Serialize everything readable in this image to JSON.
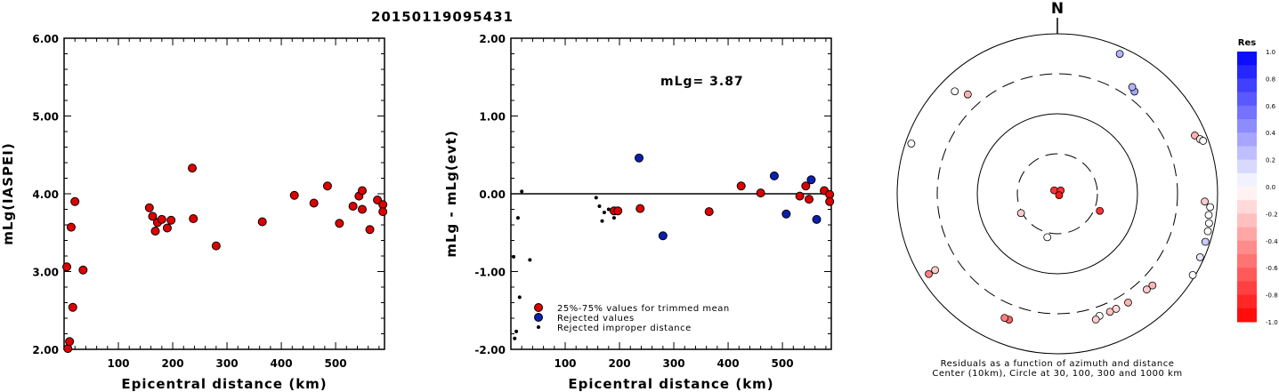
{
  "title": "20150119095431",
  "colors": {
    "trimmed": "#dd0000",
    "rejected": "#0a1fb0",
    "improper": "#000000"
  },
  "chart_data": [
    {
      "type": "scatter",
      "xlabel": "Epicentral distance (km)",
      "ylabel": "mLg(IASPEI)",
      "xlim": [
        0,
        590
      ],
      "ylim": [
        2.0,
        6.0
      ],
      "xticks": [
        "100",
        "200",
        "300",
        "400",
        "500"
      ],
      "yticks": [
        "2.00",
        "3.00",
        "4.00",
        "5.00",
        "6.00"
      ],
      "points": [
        {
          "x": 5,
          "y": 3.06
        },
        {
          "x": 7,
          "y": 2.01
        },
        {
          "x": 10,
          "y": 2.1
        },
        {
          "x": 13,
          "y": 3.57
        },
        {
          "x": 16,
          "y": 2.54
        },
        {
          "x": 20,
          "y": 3.9
        },
        {
          "x": 35,
          "y": 3.02
        },
        {
          "x": 157,
          "y": 3.82
        },
        {
          "x": 163,
          "y": 3.71
        },
        {
          "x": 168,
          "y": 3.52
        },
        {
          "x": 172,
          "y": 3.63
        },
        {
          "x": 180,
          "y": 3.67
        },
        {
          "x": 190,
          "y": 3.56
        },
        {
          "x": 197,
          "y": 3.66
        },
        {
          "x": 236,
          "y": 4.33
        },
        {
          "x": 238,
          "y": 3.68
        },
        {
          "x": 280,
          "y": 3.33
        },
        {
          "x": 365,
          "y": 3.64
        },
        {
          "x": 424,
          "y": 3.98
        },
        {
          "x": 460,
          "y": 3.88
        },
        {
          "x": 485,
          "y": 4.1
        },
        {
          "x": 507,
          "y": 3.62
        },
        {
          "x": 532,
          "y": 3.84
        },
        {
          "x": 543,
          "y": 3.97
        },
        {
          "x": 549,
          "y": 4.04
        },
        {
          "x": 549,
          "y": 3.8
        },
        {
          "x": 563,
          "y": 3.54
        },
        {
          "x": 577,
          "y": 3.92
        },
        {
          "x": 587,
          "y": 3.86
        },
        {
          "x": 587,
          "y": 3.77
        }
      ]
    },
    {
      "type": "scatter",
      "xlabel": "Epicentral distance (km)",
      "ylabel": "mLg - mLg(evt)",
      "annotation": "mLg= 3.87",
      "xlim": [
        0,
        590
      ],
      "ylim": [
        -2.0,
        2.0
      ],
      "xticks": [
        "100",
        "200",
        "300",
        "400",
        "500"
      ],
      "yticks": [
        "-2.00",
        "-1.00",
        "0.00",
        "1.00",
        "2.00"
      ],
      "legend": [
        "25%-75% values for trimmed mean",
        "Rejected values",
        "Rejected improper distance"
      ],
      "series": [
        {
          "name": "25%-75% values for trimmed mean",
          "points": [
            {
              "x": 190,
              "y": -0.22
            },
            {
              "x": 197,
              "y": -0.22
            },
            {
              "x": 238,
              "y": -0.19
            },
            {
              "x": 365,
              "y": -0.23
            },
            {
              "x": 424,
              "y": 0.1
            },
            {
              "x": 460,
              "y": 0.01
            },
            {
              "x": 532,
              "y": -0.03
            },
            {
              "x": 543,
              "y": 0.1
            },
            {
              "x": 549,
              "y": -0.07
            },
            {
              "x": 577,
              "y": 0.04
            },
            {
              "x": 587,
              "y": -0.01
            },
            {
              "x": 587,
              "y": -0.1
            }
          ]
        },
        {
          "name": "Rejected values",
          "points": [
            {
              "x": 236,
              "y": 0.46
            },
            {
              "x": 280,
              "y": -0.54
            },
            {
              "x": 485,
              "y": 0.23
            },
            {
              "x": 507,
              "y": -0.26
            },
            {
              "x": 553,
              "y": 0.18
            },
            {
              "x": 563,
              "y": -0.33
            }
          ]
        },
        {
          "name": "Rejected improper distance",
          "points": [
            {
              "x": 5,
              "y": -0.81
            },
            {
              "x": 7,
              "y": -1.86
            },
            {
              "x": 10,
              "y": -1.77
            },
            {
              "x": 13,
              "y": -0.31
            },
            {
              "x": 16,
              "y": -1.33
            },
            {
              "x": 20,
              "y": 0.03
            },
            {
              "x": 35,
              "y": -0.85
            },
            {
              "x": 157,
              "y": -0.05
            },
            {
              "x": 163,
              "y": -0.16
            },
            {
              "x": 168,
              "y": -0.35
            },
            {
              "x": 172,
              "y": -0.24
            },
            {
              "x": 180,
              "y": -0.2
            },
            {
              "x": 190,
              "y": -0.31
            }
          ]
        }
      ]
    },
    {
      "type": "scatter",
      "subtype": "polar residual plot",
      "north_label": "N",
      "caption": [
        "Residuals as a function of azimuth and distance",
        "Center (10km), Circle at 30, 100, 300 and 1000 km"
      ],
      "colorbar_title": "Res",
      "colorbar_ticks": [
        "1.0",
        "0.8",
        "0.6",
        "0.4",
        "0.2",
        "0.0",
        "-0.2",
        "-0.4",
        "-0.6",
        "-0.8",
        "-1.0"
      ],
      "points": [
        {
          "azimuth": 318,
          "distance": 3.5,
          "residual": -0.8,
          "size": "small"
        },
        {
          "azimuth": 45,
          "distance": 3.5,
          "residual": -0.8,
          "size": "small"
        },
        {
          "azimuth": 130,
          "distance": 1.7,
          "residual": -0.9,
          "size": "small"
        },
        {
          "azimuth": 242,
          "distance": 32,
          "residual": -0.2
        },
        {
          "azimuth": 193,
          "distance": 38,
          "residual": 0.0
        },
        {
          "azimuth": 112,
          "distance": 40,
          "residual": -0.8
        },
        {
          "azimuth": 315,
          "distance": 735,
          "residual": 0.0
        },
        {
          "azimuth": 318,
          "distance": 540,
          "residual": -0.3
        },
        {
          "azimuth": 289,
          "distance": 900,
          "residual": 0.0
        },
        {
          "azimuth": 37,
          "distance": 440,
          "residual": 0.35
        },
        {
          "azimuth": 35,
          "distance": 480,
          "residual": 0.3
        },
        {
          "azimuth": 24,
          "distance": 880,
          "residual": 0.3
        },
        {
          "azimuth": 67,
          "distance": 810,
          "residual": -0.3
        },
        {
          "azimuth": 69,
          "distance": 870,
          "residual": -0.1
        },
        {
          "azimuth": 70,
          "distance": 910,
          "residual": 0.0
        },
        {
          "azimuth": 93,
          "distance": 780,
          "residual": -0.2
        },
        {
          "azimuth": 95,
          "distance": 880,
          "residual": 0.0
        },
        {
          "azimuth": 98,
          "distance": 870,
          "residual": 0.0
        },
        {
          "azimuth": 101,
          "distance": 900,
          "residual": 0.0
        },
        {
          "azimuth": 104,
          "distance": 910,
          "residual": 0.0
        },
        {
          "azimuth": 108,
          "distance": 920,
          "residual": 0.2
        },
        {
          "azimuth": 114,
          "distance": 930,
          "residual": 0.1
        },
        {
          "azimuth": 121,
          "distance": 960,
          "residual": 0.0
        },
        {
          "azimuth": 134,
          "distance": 510,
          "residual": -0.3
        },
        {
          "azimuth": 137,
          "distance": 490,
          "residual": -0.2
        },
        {
          "azimuth": 147,
          "distance": 470,
          "residual": -0.3
        },
        {
          "azimuth": 153,
          "distance": 460,
          "residual": -0.15
        },
        {
          "azimuth": 156,
          "distance": 460,
          "residual": -0.25
        },
        {
          "azimuth": 161,
          "distance": 460,
          "residual": 0.0
        },
        {
          "azimuth": 163,
          "distance": 500,
          "residual": -0.2
        },
        {
          "azimuth": 201,
          "distance": 560,
          "residual": -0.6
        },
        {
          "azimuth": 203,
          "distance": 560,
          "residual": -0.5
        },
        {
          "azimuth": 238,
          "distance": 850,
          "residual": -0.5
        },
        {
          "azimuth": 238,
          "distance": 720,
          "residual": -0.2
        }
      ]
    }
  ]
}
